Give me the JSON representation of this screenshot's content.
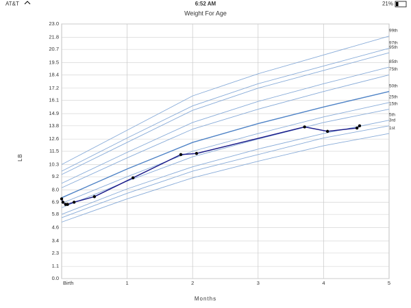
{
  "status_bar": {
    "carrier": "AT&T",
    "time": "6:52 AM",
    "battery": "21%"
  },
  "chart_data": {
    "type": "line",
    "title": "Weight For Age",
    "x_label": "Months",
    "y_label": "LB",
    "xlim": [
      0,
      5
    ],
    "ylim": [
      0,
      23
    ],
    "xticks": [
      {
        "value": 0,
        "label": "Birth"
      },
      1,
      2,
      3,
      4,
      5
    ],
    "yticks": [
      {
        "value": 0,
        "label": "0.0"
      },
      1.1,
      2.3,
      3.4,
      4.6,
      5.8,
      6.9,
      {
        "value": 8,
        "label": "8.0"
      },
      9.2,
      10.3,
      11.5,
      12.6,
      13.8,
      14.9,
      16.1,
      17.2,
      18.4,
      19.5,
      20.7,
      21.8,
      {
        "value": 23,
        "label": "23.0"
      }
    ],
    "grid": true,
    "x": [
      0,
      1,
      2,
      3,
      4,
      5
    ],
    "series": [
      {
        "name": "1st",
        "color": "#86aad8",
        "values": [
          5.1,
          7.2,
          9.1,
          10.6,
          12.0,
          13.1
        ]
      },
      {
        "name": "3rd",
        "color": "#86aad8",
        "values": [
          5.5,
          7.7,
          9.7,
          11.2,
          12.7,
          13.8
        ]
      },
      {
        "name": "5th",
        "color": "#86aad8",
        "values": [
          5.8,
          8.1,
          10.1,
          11.7,
          13.1,
          14.3
        ]
      },
      {
        "name": "15th",
        "color": "#86aad8",
        "values": [
          6.4,
          8.8,
          11.0,
          12.6,
          14.1,
          15.3
        ]
      },
      {
        "name": "25th",
        "color": "#86aad8",
        "values": [
          6.8,
          9.2,
          11.5,
          13.1,
          14.6,
          15.9
        ]
      },
      {
        "name": "50th",
        "color": "#4f83c6",
        "values": [
          7.3,
          9.9,
          12.3,
          14.0,
          15.5,
          16.9
        ]
      },
      {
        "name": "75th",
        "color": "#86aad8",
        "values": [
          8.2,
          10.9,
          13.5,
          15.3,
          16.9,
          18.4
        ]
      },
      {
        "name": "85th",
        "color": "#86aad8",
        "values": [
          8.6,
          11.4,
          14.1,
          16.0,
          17.6,
          19.1
        ]
      },
      {
        "name": "95th",
        "color": "#86aad8",
        "values": [
          9.4,
          12.3,
          15.2,
          17.2,
          18.8,
          20.4
        ]
      },
      {
        "name": "97th",
        "color": "#86aad8",
        "values": [
          9.7,
          12.7,
          15.6,
          17.6,
          19.2,
          20.8
        ]
      },
      {
        "name": "99th",
        "color": "#86aad8",
        "values": [
          10.3,
          13.4,
          16.5,
          18.5,
          20.2,
          21.9
        ]
      }
    ],
    "patient": {
      "color": "#1c1c8a",
      "marker_color": "#000000",
      "x": [
        0,
        0.02,
        0.06,
        0.09,
        0.19,
        0.5,
        1.09,
        1.82,
        2.06,
        3.71,
        4.06,
        4.51,
        4.55
      ],
      "values": [
        7.2,
        6.9,
        6.7,
        6.7,
        6.9,
        7.4,
        9.1,
        11.2,
        11.3,
        13.7,
        13.3,
        13.6,
        13.8
      ]
    }
  }
}
